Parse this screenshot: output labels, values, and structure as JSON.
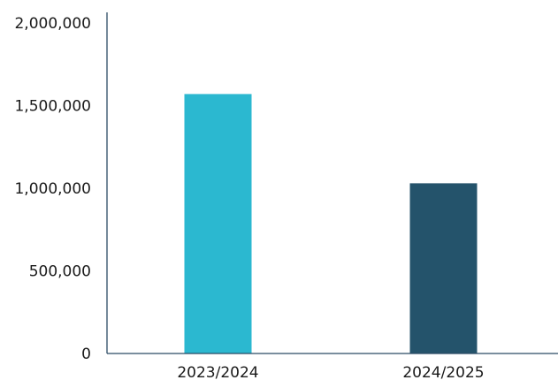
{
  "chart_data": {
    "type": "bar",
    "title": "",
    "xlabel": "",
    "ylabel": "",
    "categories": [
      "2023/2024",
      "2024/2025"
    ],
    "values": [
      1570000,
      1030000
    ],
    "bar_colors": [
      "#2bb8d0",
      "#24536b"
    ],
    "ylim": [
      0,
      2000000
    ],
    "y_ticks": [
      0,
      500000,
      1000000,
      1500000,
      2000000
    ],
    "y_tick_labels": [
      "0",
      "500,000",
      "1,000,000",
      "1,500,000",
      "2,000,000"
    ],
    "grid": false,
    "legend": "none",
    "axis_color": "#2b4a63"
  }
}
